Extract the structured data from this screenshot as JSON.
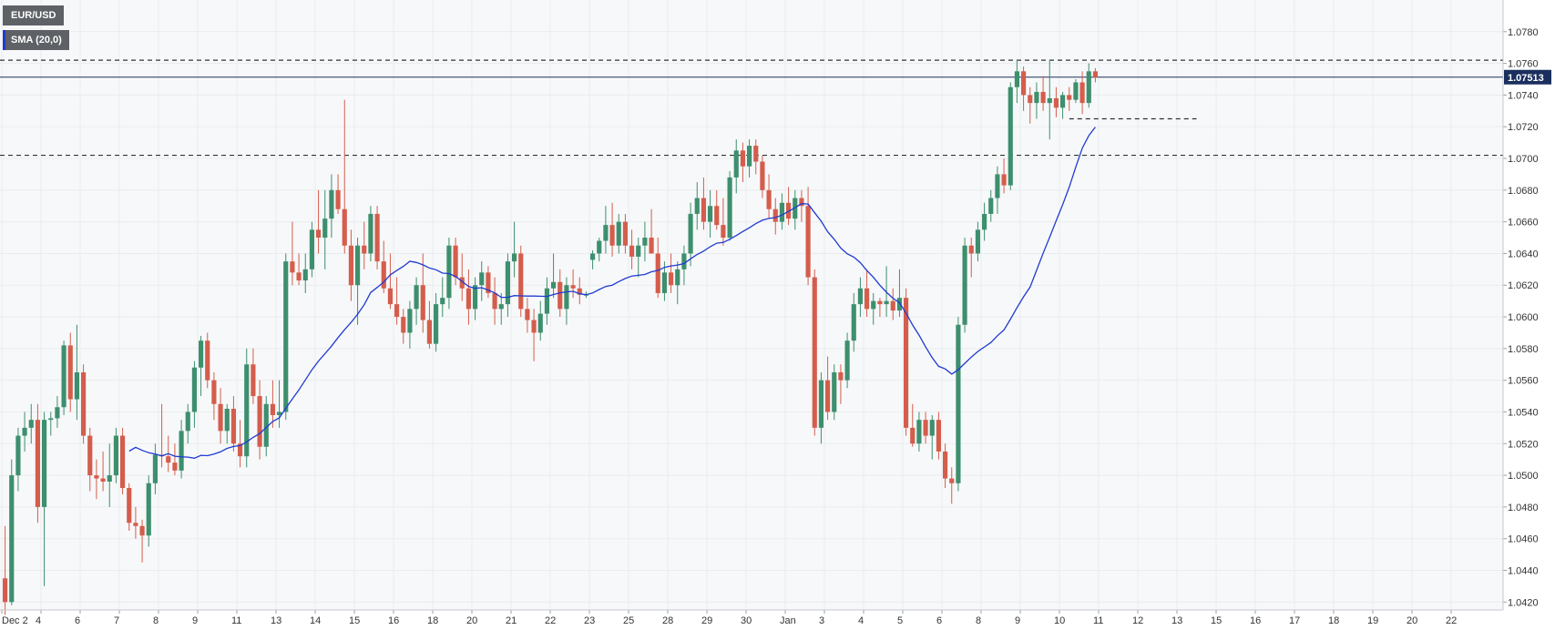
{
  "chart_data": {
    "type": "candlestick",
    "symbol": "EUR/USD",
    "indicator": "SMA (20,0)",
    "current_price": "1.07513",
    "colors": {
      "up": "#3d8f6e",
      "down": "#d45d4c",
      "sma": "#1f3bd1",
      "price_line": "#1b2f5e",
      "grid": "#e9ecef"
    },
    "ylim": [
      1.0415,
      1.08
    ],
    "y_ticks": [
      "1.0420",
      "1.0440",
      "1.0460",
      "1.0480",
      "1.0500",
      "1.0520",
      "1.0540",
      "1.0560",
      "1.0580",
      "1.0600",
      "1.0620",
      "1.0640",
      "1.0660",
      "1.0680",
      "1.0700",
      "1.0720",
      "1.0740",
      "1.0760",
      "1.0780"
    ],
    "x_ticks": [
      "Dec 2",
      "4",
      "6",
      "7",
      "8",
      "9",
      "11",
      "13",
      "14",
      "15",
      "16",
      "18",
      "20",
      "21",
      "22",
      "23",
      "25",
      "28",
      "29",
      "30",
      "Jan",
      "3",
      "4",
      "5",
      "6",
      "8",
      "9",
      "10",
      "11",
      "12",
      "13",
      "15",
      "16",
      "17",
      "18",
      "19",
      "20",
      "22"
    ],
    "levels": {
      "resistance": 1.0762,
      "support": 1.0702,
      "range_low": 1.0725,
      "range_low_start_day": 27.25,
      "range_low_end_day": 30.5
    },
    "bars_per_day": 6,
    "candles": [
      [
        1.0435,
        1.0468,
        1.0412,
        1.042
      ],
      [
        1.042,
        1.051,
        1.0418,
        1.05
      ],
      [
        1.05,
        1.053,
        1.049,
        1.0525
      ],
      [
        1.0525,
        1.054,
        1.0515,
        1.053
      ],
      [
        1.053,
        1.0545,
        1.052,
        1.0535
      ],
      [
        1.0535,
        1.0545,
        1.047,
        1.048
      ],
      [
        1.048,
        1.054,
        1.043,
        1.0535
      ],
      [
        1.0535,
        1.054,
        1.0525,
        1.0536
      ],
      [
        1.0536,
        1.055,
        1.053,
        1.0543
      ],
      [
        1.0543,
        1.0585,
        1.0538,
        1.0582
      ],
      [
        1.0582,
        1.059,
        1.054,
        1.0548
      ],
      [
        1.0548,
        1.0595,
        1.0535,
        1.0565
      ],
      [
        1.0565,
        1.057,
        1.052,
        1.0525
      ],
      [
        1.0525,
        1.053,
        1.049,
        1.05
      ],
      [
        1.05,
        1.051,
        1.0485,
        1.0498
      ],
      [
        1.0498,
        1.0515,
        1.049,
        1.0496
      ],
      [
        1.0496,
        1.052,
        1.048,
        1.05
      ],
      [
        1.05,
        1.053,
        1.0495,
        1.0525
      ],
      [
        1.0525,
        1.053,
        1.0488,
        1.0492
      ],
      [
        1.0492,
        1.0495,
        1.0465,
        1.047
      ],
      [
        1.047,
        1.048,
        1.046,
        1.0468
      ],
      [
        1.0468,
        1.0472,
        1.0445,
        1.0462
      ],
      [
        1.0462,
        1.05,
        1.0455,
        1.0495
      ],
      [
        1.0495,
        1.052,
        1.0488,
        1.0513
      ],
      [
        1.0513,
        1.0545,
        1.0505,
        1.0512
      ],
      [
        1.0512,
        1.0525,
        1.0502,
        1.0508
      ],
      [
        1.0508,
        1.052,
        1.05,
        1.0503
      ],
      [
        1.0503,
        1.0535,
        1.0498,
        1.0528
      ],
      [
        1.0528,
        1.0545,
        1.052,
        1.054
      ],
      [
        1.054,
        1.0572,
        1.053,
        1.0568
      ],
      [
        1.0568,
        1.0588,
        1.055,
        1.0585
      ],
      [
        1.0585,
        1.059,
        1.0555,
        1.056
      ],
      [
        1.056,
        1.0565,
        1.0535,
        1.0545
      ],
      [
        1.0545,
        1.0555,
        1.052,
        1.0528
      ],
      [
        1.0528,
        1.0545,
        1.052,
        1.0542
      ],
      [
        1.0542,
        1.055,
        1.0515,
        1.052
      ],
      [
        1.052,
        1.0535,
        1.0505,
        1.0512
      ],
      [
        1.0512,
        1.058,
        1.0505,
        1.057
      ],
      [
        1.057,
        1.058,
        1.0545,
        1.055
      ],
      [
        1.055,
        1.056,
        1.051,
        1.0518
      ],
      [
        1.0518,
        1.055,
        1.0512,
        1.0545
      ],
      [
        1.0545,
        1.056,
        1.053,
        1.0538
      ],
      [
        1.0538,
        1.056,
        1.053,
        1.054
      ],
      [
        1.054,
        1.064,
        1.0535,
        1.0635
      ],
      [
        1.0635,
        1.066,
        1.062,
        1.0628
      ],
      [
        1.0628,
        1.064,
        1.062,
        1.0623
      ],
      [
        1.0623,
        1.064,
        1.0615,
        1.063
      ],
      [
        1.063,
        1.066,
        1.0625,
        1.0655
      ],
      [
        1.0655,
        1.068,
        1.064,
        1.065
      ],
      [
        1.065,
        1.068,
        1.063,
        1.0662
      ],
      [
        1.0662,
        1.069,
        1.065,
        1.068
      ],
      [
        1.068,
        1.069,
        1.0665,
        1.0668
      ],
      [
        1.0668,
        1.0737,
        1.064,
        1.0645
      ],
      [
        1.0645,
        1.0655,
        1.061,
        1.062
      ],
      [
        1.062,
        1.065,
        1.0595,
        1.0645
      ],
      [
        1.0645,
        1.066,
        1.063,
        1.064
      ],
      [
        1.064,
        1.067,
        1.0635,
        1.0665
      ],
      [
        1.0665,
        1.067,
        1.063,
        1.0635
      ],
      [
        1.0635,
        1.0648,
        1.0615,
        1.0618
      ],
      [
        1.0618,
        1.064,
        1.0605,
        1.0608
      ],
      [
        1.0608,
        1.0625,
        1.0595,
        1.06
      ],
      [
        1.06,
        1.0605,
        1.0583,
        1.059
      ],
      [
        1.059,
        1.061,
        1.058,
        1.0605
      ],
      [
        1.0605,
        1.0625,
        1.0595,
        1.062
      ],
      [
        1.062,
        1.064,
        1.059,
        1.0598
      ],
      [
        1.0598,
        1.061,
        1.058,
        1.0583
      ],
      [
        1.0583,
        1.0615,
        1.0578,
        1.0608
      ],
      [
        1.0608,
        1.0625,
        1.06,
        1.0612
      ],
      [
        1.0612,
        1.065,
        1.0605,
        1.0645
      ],
      [
        1.0645,
        1.065,
        1.062,
        1.0625
      ],
      [
        1.0625,
        1.064,
        1.061,
        1.0618
      ],
      [
        1.0618,
        1.063,
        1.0595,
        1.0605
      ],
      [
        1.0605,
        1.0625,
        1.0598,
        1.062
      ],
      [
        1.062,
        1.0635,
        1.061,
        1.0628
      ],
      [
        1.0628,
        1.0632,
        1.0612,
        1.0615
      ],
      [
        1.0615,
        1.0625,
        1.0595,
        1.0605
      ],
      [
        1.0605,
        1.0615,
        1.0595,
        1.0608
      ],
      [
        1.0608,
        1.064,
        1.06,
        1.0635
      ],
      [
        1.0635,
        1.066,
        1.0625,
        1.064
      ],
      [
        1.064,
        1.0645,
        1.06,
        1.0605
      ],
      [
        1.0605,
        1.0612,
        1.059,
        1.0598
      ],
      [
        1.0598,
        1.0605,
        1.0572,
        1.059
      ],
      [
        1.059,
        1.061,
        1.0585,
        1.0602
      ],
      [
        1.0602,
        1.0625,
        1.0595,
        1.0618
      ],
      [
        1.0618,
        1.064,
        1.0612,
        1.0622
      ],
      [
        1.0622,
        1.063,
        1.06,
        1.0605
      ],
      [
        1.0605,
        1.0625,
        1.0595,
        1.062
      ],
      [
        1.062,
        1.063,
        1.0612,
        1.0618
      ],
      [
        1.0618,
        1.0625,
        1.0608,
        1.0614
      ],
      [
        1.0614,
        1.0616,
        1.0612,
        1.0614
      ],
      [
        1.0636,
        1.0642,
        1.063,
        1.064
      ],
      [
        1.064,
        1.065,
        1.0635,
        1.0648
      ],
      [
        1.0648,
        1.067,
        1.064,
        1.0658
      ],
      [
        1.0658,
        1.0672,
        1.0638,
        1.0645
      ],
      [
        1.0645,
        1.0665,
        1.064,
        1.066
      ],
      [
        1.066,
        1.0665,
        1.064,
        1.0645
      ],
      [
        1.0645,
        1.0655,
        1.063,
        1.0638
      ],
      [
        1.0638,
        1.065,
        1.0625,
        1.0645
      ],
      [
        1.0645,
        1.066,
        1.0635,
        1.065
      ],
      [
        1.065,
        1.0668,
        1.064,
        1.064
      ],
      [
        1.064,
        1.065,
        1.0612,
        1.0615
      ],
      [
        1.0615,
        1.0635,
        1.061,
        1.0628
      ],
      [
        1.0628,
        1.064,
        1.0615,
        1.062
      ],
      [
        1.062,
        1.0635,
        1.0608,
        1.063
      ],
      [
        1.063,
        1.0645,
        1.062,
        1.064
      ],
      [
        1.064,
        1.0672,
        1.0632,
        1.0665
      ],
      [
        1.0665,
        1.0685,
        1.0655,
        1.0675
      ],
      [
        1.0675,
        1.0688,
        1.0655,
        1.066
      ],
      [
        1.066,
        1.068,
        1.065,
        1.067
      ],
      [
        1.067,
        1.068,
        1.0655,
        1.0658
      ],
      [
        1.0658,
        1.0675,
        1.0645,
        1.065
      ],
      [
        1.065,
        1.0692,
        1.0648,
        1.0688
      ],
      [
        1.0688,
        1.0712,
        1.0678,
        1.0705
      ],
      [
        1.0705,
        1.071,
        1.0685,
        1.0695
      ],
      [
        1.0695,
        1.0712,
        1.0688,
        1.0708
      ],
      [
        1.0708,
        1.0712,
        1.069,
        1.0698
      ],
      [
        1.0698,
        1.0702,
        1.0675,
        1.068
      ],
      [
        1.068,
        1.069,
        1.0662,
        1.0668
      ],
      [
        1.0668,
        1.0675,
        1.0652,
        1.066
      ],
      [
        1.066,
        1.0678,
        1.0655,
        1.0672
      ],
      [
        1.0672,
        1.0682,
        1.0658,
        1.0662
      ],
      [
        1.0662,
        1.068,
        1.0655,
        1.0675
      ],
      [
        1.0675,
        1.068,
        1.066,
        1.067
      ],
      [
        1.067,
        1.0682,
        1.062,
        1.0625
      ],
      [
        1.0625,
        1.063,
        1.0525,
        1.053
      ],
      [
        1.053,
        1.0565,
        1.052,
        1.056
      ],
      [
        1.056,
        1.0575,
        1.0535,
        1.054
      ],
      [
        1.054,
        1.057,
        1.0535,
        1.0565
      ],
      [
        1.0565,
        1.057,
        1.0545,
        1.056
      ],
      [
        1.056,
        1.059,
        1.0555,
        1.0585
      ],
      [
        1.0585,
        1.0615,
        1.0578,
        1.0608
      ],
      [
        1.0608,
        1.0625,
        1.06,
        1.0618
      ],
      [
        1.0618,
        1.063,
        1.06,
        1.0605
      ],
      [
        1.0605,
        1.0615,
        1.0595,
        1.061
      ],
      [
        1.061,
        1.0612,
        1.06,
        1.0608
      ],
      [
        1.0608,
        1.0632,
        1.06,
        1.061
      ],
      [
        1.061,
        1.0618,
        1.0598,
        1.0604
      ],
      [
        1.0604,
        1.063,
        1.06,
        1.0612
      ],
      [
        1.0612,
        1.0618,
        1.0525,
        1.053
      ],
      [
        1.053,
        1.0545,
        1.0518,
        1.052
      ],
      [
        1.052,
        1.054,
        1.0515,
        1.0535
      ],
      [
        1.0535,
        1.054,
        1.052,
        1.0525
      ],
      [
        1.0525,
        1.0538,
        1.051,
        1.0535
      ],
      [
        1.0535,
        1.054,
        1.051,
        1.0515
      ],
      [
        1.0515,
        1.052,
        1.0492,
        1.0498
      ],
      [
        1.0498,
        1.0505,
        1.0482,
        1.0495
      ],
      [
        1.0495,
        1.06,
        1.049,
        1.0595
      ],
      [
        1.0595,
        1.065,
        1.059,
        1.0645
      ],
      [
        1.0645,
        1.065,
        1.0625,
        1.064
      ],
      [
        1.064,
        1.066,
        1.0635,
        1.0655
      ],
      [
        1.0655,
        1.0672,
        1.0648,
        1.0665
      ],
      [
        1.0665,
        1.068,
        1.066,
        1.0675
      ],
      [
        1.0675,
        1.0695,
        1.0665,
        1.069
      ],
      [
        1.069,
        1.07,
        1.0678,
        1.0683
      ],
      [
        1.0683,
        1.0748,
        1.068,
        1.0745
      ],
      [
        1.0745,
        1.0762,
        1.0735,
        1.0755
      ],
      [
        1.0755,
        1.0758,
        1.073,
        1.074
      ],
      [
        1.074,
        1.0745,
        1.0722,
        1.0735
      ],
      [
        1.0735,
        1.0748,
        1.0725,
        1.0742
      ],
      [
        1.0742,
        1.0752,
        1.073,
        1.0735
      ],
      [
        1.0735,
        1.0762,
        1.0712,
        1.0738
      ],
      [
        1.0738,
        1.0745,
        1.0726,
        1.0732
      ],
      [
        1.0732,
        1.0742,
        1.0725,
        1.074
      ],
      [
        1.074,
        1.0745,
        1.073,
        1.0737
      ],
      [
        1.0737,
        1.075,
        1.0735,
        1.0748
      ],
      [
        1.0748,
        1.0755,
        1.0728,
        1.0735
      ],
      [
        1.0735,
        1.076,
        1.0732,
        1.0755
      ],
      [
        1.0755,
        1.0757,
        1.0748,
        1.0751
      ]
    ]
  }
}
